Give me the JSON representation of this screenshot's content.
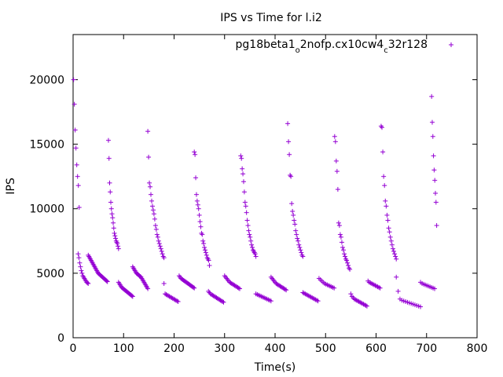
{
  "chart_data": {
    "type": "scatter",
    "title": "IPS vs Time for l.i2",
    "xlabel": "Time(s)",
    "ylabel": "IPS",
    "xlim": [
      0,
      800
    ],
    "ylim": [
      0,
      23500
    ],
    "xticks": [
      0,
      100,
      200,
      300,
      400,
      500,
      600,
      700,
      800
    ],
    "yticks": [
      0,
      5000,
      10000,
      15000,
      20000
    ],
    "grid": false,
    "legend_position": "top-right",
    "marker": "plus",
    "color": "#9400d3",
    "series": [
      {
        "name_parts": [
          {
            "t": "pg18beta1",
            "sub": false
          },
          {
            "t": "o",
            "sub": true
          },
          {
            "t": "2nofp.cx10cw4",
            "sub": false
          },
          {
            "t": "c",
            "sub": true
          },
          {
            "t": "32r128",
            "sub": false
          }
        ],
        "segments": [
          {
            "x0": 1,
            "x1": 12,
            "y": [
              20000,
              18100,
              16100,
              14700,
              13400,
              12500,
              11800,
              10100
            ]
          },
          {
            "x0": 10,
            "x1": 30,
            "y": [
              6500,
              6200,
              5800,
              5500,
              5200,
              5000,
              4800,
              4700,
              4600,
              4500,
              4400,
              4300,
              4250,
              4200
            ]
          },
          {
            "x0": 30,
            "x1": 68,
            "y": [
              6400,
              6300,
              6200,
              6100,
              6000,
              5900,
              5800,
              5700,
              5600,
              5500,
              5400,
              5300,
              5200,
              5100,
              5000,
              4950,
              4900,
              4850,
              4800,
              4750,
              4700,
              4650,
              4600,
              4550,
              4500,
              4450,
              4400,
              4350
            ]
          },
          {
            "x0": 70,
            "x1": 90,
            "y": [
              15300,
              13900,
              12000,
              11300,
              10500,
              10000,
              9600,
              9300,
              8900,
              8500,
              8100,
              7900,
              7700,
              7500,
              7400,
              7300,
              7100,
              6900
            ]
          },
          {
            "x0": 90,
            "x1": 118,
            "y": [
              4300,
              4200,
              4100,
              4000,
              3900,
              3850,
              3800,
              3750,
              3700,
              3650,
              3600,
              3550,
              3500,
              3450,
              3400,
              3350,
              3300,
              3250,
              3200
            ]
          },
          {
            "x0": 118,
            "x1": 148,
            "y": [
              5500,
              5400,
              5300,
              5200,
              5100,
              5000,
              4950,
              4900,
              4850,
              4800,
              4750,
              4700,
              4600,
              4500,
              4400,
              4300,
              4200,
              4100,
              4000,
              3900,
              3800
            ]
          },
          {
            "x0": 148,
            "x1": 180,
            "y": [
              16000,
              14000,
              12000,
              11700,
              11100,
              10600,
              10200,
              9900,
              9600,
              9200,
              8700,
              8400,
              8000,
              7800,
              7500,
              7300,
              7100,
              6900,
              6700,
              6500,
              6300,
              6200
            ]
          },
          {
            "x0": 180,
            "x1": 208,
            "y": [
              4200,
              3400,
              3350,
              3300,
              3250,
              3200,
              3150,
              3100,
              3050,
              3000,
              2950,
              2900,
              2850,
              2800
            ]
          },
          {
            "x0": 210,
            "x1": 240,
            "y": [
              4800,
              4700,
              4600,
              4550,
              4500,
              4450,
              4400,
              4350,
              4300,
              4250,
              4200,
              4150,
              4100,
              4050,
              4000,
              3950,
              3900,
              3850
            ]
          },
          {
            "x0": 240,
            "x1": 270,
            "y": [
              14400,
              14200,
              12400,
              11100,
              10600,
              10300,
              10000,
              9500,
              9000,
              8600,
              8100,
              8000,
              7500,
              7300,
              7000,
              6800,
              6600,
              6400,
              6200,
              6100,
              6000,
              5600
            ]
          },
          {
            "x0": 268,
            "x1": 298,
            "y": [
              3600,
              3500,
              3400,
              3350,
              3300,
              3250,
              3200,
              3150,
              3100,
              3050,
              3000,
              2950,
              2900,
              2850,
              2800,
              2750
            ]
          },
          {
            "x0": 300,
            "x1": 330,
            "y": [
              4800,
              4700,
              4600,
              4500,
              4400,
              4300,
              4250,
              4200,
              4150,
              4100,
              4050,
              4000,
              3950,
              3900,
              3850,
              3800
            ]
          },
          {
            "x0": 332,
            "x1": 362,
            "y": [
              14100,
              13900,
              13100,
              12700,
              12100,
              11300,
              10500,
              10200,
              9700,
              9100,
              8700,
              8300,
              8000,
              7800,
              7500,
              7200,
              7000,
              6800,
              6700,
              6600,
              6500,
              6300
            ]
          },
          {
            "x0": 362,
            "x1": 392,
            "y": [
              3400,
              3350,
              3300,
              3250,
              3200,
              3150,
              3100,
              3050,
              3000,
              2950,
              2900,
              2850
            ]
          },
          {
            "x0": 392,
            "x1": 422,
            "y": [
              4700,
              4600,
              4500,
              4400,
              4300,
              4200,
              4150,
              4100,
              4050,
              4000,
              3950,
              3900,
              3850,
              3800,
              3750,
              3700
            ]
          },
          {
            "x0": 425,
            "x1": 455,
            "y": [
              16600,
              15200,
              14200,
              12600,
              12500,
              10400,
              9800,
              9500,
              9100,
              8800,
              8300,
              8000,
              7700,
              7500,
              7200,
              7000,
              6800,
              6600,
              6400,
              6300
            ]
          },
          {
            "x0": 455,
            "x1": 485,
            "y": [
              3500,
              3450,
              3400,
              3350,
              3300,
              3250,
              3200,
              3150,
              3100,
              3050,
              3000,
              2950,
              2900,
              2850
            ]
          },
          {
            "x0": 487,
            "x1": 517,
            "y": [
              4600,
              4500,
              4400,
              4300,
              4200,
              4150,
              4100,
              4050,
              4000,
              3950,
              3900,
              3850
            ]
          },
          {
            "x0": 518,
            "x1": 548,
            "y": [
              15600,
              15200,
              13700,
              12900,
              11500,
              8900,
              8700,
              8000,
              7800,
              7400,
              7000,
              6800,
              6500,
              6300,
              6100,
              6000,
              5800,
              5600,
              5400,
              5300
            ]
          },
          {
            "x0": 550,
            "x1": 582,
            "y": [
              3400,
              3200,
              3100,
              3000,
              2950,
              2900,
              2850,
              2800,
              2750,
              2700,
              2650,
              2600,
              2550,
              2500,
              2450
            ]
          },
          {
            "x0": 584,
            "x1": 608,
            "y": [
              4400,
              4300,
              4250,
              4200,
              4150,
              4100,
              4050,
              4000,
              3950,
              3900,
              3850
            ]
          },
          {
            "x0": 610,
            "x1": 640,
            "y": [
              16400,
              16300,
              14400,
              12500,
              11800,
              10600,
              10200,
              9500,
              9100,
              8500,
              8200,
              7800,
              7500,
              7200,
              6900,
              6700,
              6500,
              6300,
              6100
            ]
          },
          {
            "x0": 640,
            "x1": 688,
            "y": [
              4700,
              3600,
              3000,
              2900,
              2850,
              2800,
              2750,
              2700,
              2650,
              2600,
              2550,
              2500,
              2450,
              2400
            ]
          },
          {
            "x0": 688,
            "x1": 716,
            "y": [
              4300,
              4200,
              4150,
              4100,
              4050,
              4000,
              3950,
              3900,
              3850,
              3800
            ]
          },
          {
            "x0": 710,
            "x1": 720,
            "y": [
              18700,
              16700,
              15600,
              14100,
              13000,
              12200,
              11200,
              10500,
              8700
            ]
          }
        ]
      }
    ]
  }
}
